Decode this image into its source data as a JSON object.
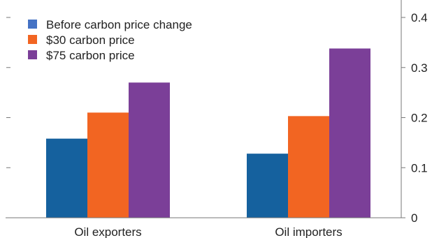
{
  "chart_data": {
    "type": "bar",
    "categories": [
      "Oil exporters",
      "Oil importers"
    ],
    "series": [
      {
        "name": "Before carbon price change",
        "values": [
          0.158,
          0.128
        ],
        "color": "#15619e",
        "legend_color": "#4472c4"
      },
      {
        "name": "$30 carbon price",
        "values": [
          0.21,
          0.203
        ],
        "color": "#f26522"
      },
      {
        "name": "$75 carbon price",
        "values": [
          0.27,
          0.338
        ],
        "color": "#7b3f98"
      }
    ],
    "ylim": [
      0,
      0.4
    ],
    "yticks": [
      0,
      0.1,
      0.2,
      0.3,
      0.4
    ],
    "ytick_labels": [
      "0",
      "0.1",
      "0.2",
      "0.3",
      "0.4"
    ],
    "y_axis_side": "right",
    "left_axis_ticks": "unlabeled",
    "legend_position": "top-left",
    "grid": false,
    "title": "",
    "xlabel": "",
    "ylabel": ""
  }
}
